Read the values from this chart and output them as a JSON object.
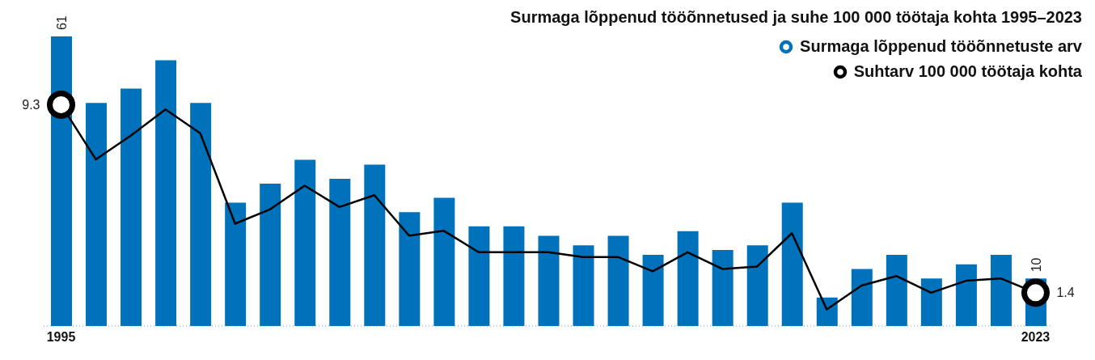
{
  "chart_data": {
    "type": "bar",
    "title": "Surmaga lõppenud tööõnnetused ja suhe 100 000 töötaja kohta 1995–2023",
    "categories": [
      "1995",
      null,
      null,
      null,
      null,
      null,
      null,
      null,
      null,
      null,
      null,
      null,
      null,
      null,
      null,
      null,
      null,
      null,
      null,
      null,
      null,
      null,
      null,
      null,
      null,
      null,
      null,
      null,
      "2023"
    ],
    "series": [
      {
        "name": "Surmaga lõppenud tööõnnetuste arv",
        "color": "#0072bc",
        "values": [
          61,
          47,
          50,
          56,
          47,
          26,
          30,
          35,
          31,
          34,
          24,
          27,
          21,
          21,
          19,
          17,
          19,
          15,
          20,
          16,
          17,
          26,
          6,
          12,
          15,
          10,
          13,
          15,
          10
        ],
        "value_labels": [
          "61",
          null,
          null,
          null,
          null,
          null,
          null,
          null,
          null,
          null,
          null,
          null,
          null,
          null,
          null,
          null,
          null,
          null,
          null,
          null,
          null,
          null,
          null,
          null,
          null,
          null,
          null,
          null,
          "10"
        ]
      },
      {
        "name": "Suhtarv 100 000 töötaja kohta",
        "type": "line",
        "axis": "y2",
        "color": "#000000",
        "values": [
          9.3,
          7.0,
          8.0,
          9.1,
          8.1,
          4.3,
          4.9,
          5.9,
          5.0,
          5.5,
          3.8,
          4.0,
          3.1,
          3.1,
          3.1,
          2.9,
          2.9,
          2.3,
          3.1,
          2.4,
          2.5,
          3.9,
          0.7,
          1.7,
          2.1,
          1.4,
          1.9,
          2.0,
          1.4
        ],
        "value_labels": [
          "9.3",
          null,
          null,
          null,
          null,
          null,
          null,
          null,
          null,
          null,
          null,
          null,
          null,
          null,
          null,
          null,
          null,
          null,
          null,
          null,
          null,
          null,
          null,
          null,
          null,
          null,
          null,
          null,
          "1.4"
        ]
      }
    ],
    "tick_labels": "x",
    "legend": "top right"
  }
}
